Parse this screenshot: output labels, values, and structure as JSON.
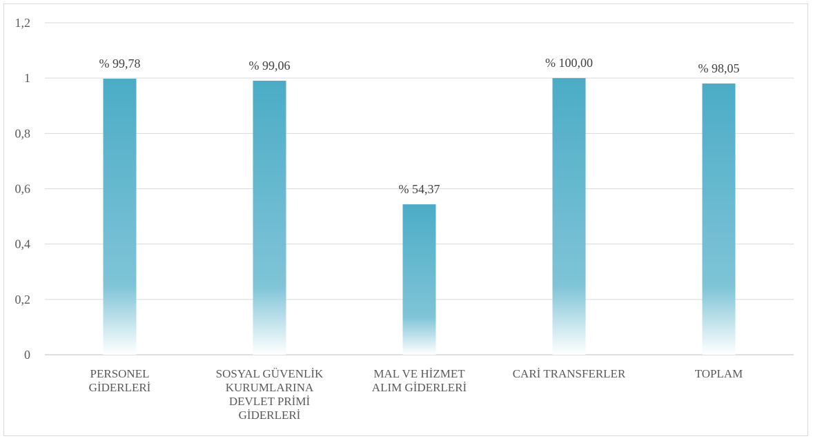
{
  "chart_data": {
    "type": "bar",
    "title": "",
    "xlabel": "",
    "ylabel": "",
    "categories": [
      [
        "PERSONEL",
        "GİDERLERİ"
      ],
      [
        "SOSYAL GÜVENLİK",
        "KURUMLARINA",
        "DEVLET PRİMİ",
        "GİDERLERİ"
      ],
      [
        "MAL VE HİZMET",
        "ALIM GİDERLERİ"
      ],
      [
        "CARİ TRANSFERLER"
      ],
      [
        "TOPLAM"
      ]
    ],
    "values": [
      0.9978,
      0.9906,
      0.5437,
      1.0,
      0.9805
    ],
    "data_labels": [
      "% 99,78",
      "% 99,06",
      "% 54,37",
      "% 100,00",
      "% 98,05"
    ],
    "ylim": [
      0,
      1.2
    ],
    "yticks": [
      0,
      0.2,
      0.4,
      0.6,
      0.8,
      1,
      1.2
    ],
    "ytick_labels": [
      "0",
      "0,2",
      "0,4",
      "0,6",
      "0,8",
      "1",
      "1,2"
    ],
    "grid": true,
    "legend": "none",
    "colors": {
      "bar_top": "#4bacc6",
      "bar_mid": "#7fc4d7",
      "bar_bottom": "#ffffff",
      "grid": "#d9d9d9",
      "axis": "#bfbfbf"
    }
  }
}
